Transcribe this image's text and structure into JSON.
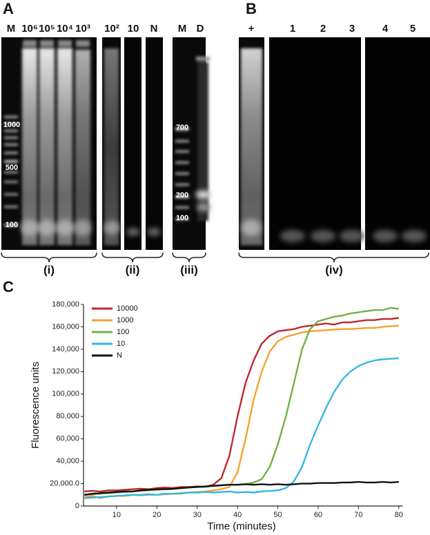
{
  "panel_a": {
    "label": "A",
    "lanes_i": [
      "M",
      "10⁶",
      "10⁵",
      "10⁴",
      "10³"
    ],
    "lanes_ii": [
      "10²",
      "10",
      "N"
    ],
    "lanes_iii": [
      "M",
      "D"
    ],
    "ladder_i": [
      "1000",
      "500",
      "100"
    ],
    "ladder_iii": [
      "700",
      "200",
      "100"
    ]
  },
  "groups": [
    "(i)",
    "(ii)",
    "(iii)",
    "(iv)"
  ],
  "panel_b": {
    "label": "B",
    "lanes": [
      "+",
      "1",
      "2",
      "3",
      "4",
      "5"
    ]
  },
  "panel_c": {
    "label": "C"
  },
  "chart_data": {
    "type": "line",
    "xlabel": "Time (minutes)",
    "ylabel": "Fluorescence units",
    "x": [
      2,
      4,
      6,
      8,
      10,
      12,
      14,
      16,
      18,
      20,
      22,
      24,
      26,
      28,
      30,
      32,
      34,
      36,
      38,
      40,
      42,
      44,
      46,
      48,
      50,
      52,
      54,
      56,
      58,
      60,
      62,
      64,
      66,
      68,
      70,
      72,
      74,
      76,
      78,
      80
    ],
    "series": [
      {
        "name": "10000",
        "color": "#c0272d",
        "values": [
          13000,
          13500,
          13000,
          14000,
          14000,
          14500,
          15000,
          15500,
          15000,
          16000,
          16500,
          16000,
          17000,
          17000,
          17500,
          17000,
          19000,
          25000,
          45000,
          80000,
          110000,
          130000,
          145000,
          152000,
          156000,
          157000,
          158000,
          160000,
          161000,
          162000,
          163000,
          162000,
          164000,
          164000,
          165000,
          166000,
          166000,
          167000,
          167000,
          168000
        ]
      },
      {
        "name": "1000",
        "color": "#f7a12c",
        "values": [
          8000,
          9000,
          7000,
          8500,
          9000,
          9000,
          10000,
          9500,
          10000,
          10000,
          10500,
          11000,
          11000,
          12000,
          12500,
          13000,
          14000,
          15000,
          17000,
          30000,
          60000,
          95000,
          120000,
          138000,
          147000,
          151000,
          153000,
          155000,
          156000,
          156500,
          157000,
          157500,
          158000,
          158000,
          158500,
          159000,
          159000,
          160000,
          160500,
          161000
        ]
      },
      {
        "name": "100",
        "color": "#72b043",
        "values": [
          10000,
          10500,
          11000,
          11500,
          12000,
          12500,
          13000,
          13500,
          14000,
          14500,
          15000,
          15000,
          16000,
          16500,
          17000,
          17000,
          18000,
          18500,
          19000,
          19000,
          19500,
          21000,
          24000,
          35000,
          55000,
          80000,
          110000,
          140000,
          158000,
          165000,
          167000,
          169000,
          170000,
          172000,
          173000,
          174000,
          175000,
          175000,
          177000,
          176000
        ]
      },
      {
        "name": "10",
        "color": "#33b5e5",
        "values": [
          7000,
          7500,
          8000,
          8500,
          9000,
          9500,
          10000,
          10000,
          10500,
          10000,
          11000,
          11000,
          11500,
          12000,
          12000,
          12500,
          12000,
          12500,
          13000,
          12000,
          12500,
          12000,
          13000,
          13500,
          14000,
          16000,
          22000,
          35000,
          55000,
          72000,
          88000,
          102000,
          113000,
          120000,
          125000,
          128000,
          130000,
          131000,
          131500,
          132000
        ]
      },
      {
        "name": "N",
        "color": "#111111",
        "values": [
          10000,
          11000,
          11500,
          12000,
          12500,
          13000,
          13000,
          14000,
          14500,
          15000,
          15000,
          15500,
          16000,
          16500,
          17000,
          17500,
          18000,
          18500,
          19000,
          19000,
          19500,
          19000,
          19500,
          19000,
          19500,
          19000,
          19500,
          20000,
          20000,
          20500,
          20500,
          20500,
          21000,
          21000,
          21500,
          21000,
          21000,
          21500,
          21000,
          21500
        ]
      }
    ],
    "xlim": [
      1.8,
      81
    ],
    "ylim": [
      0,
      180000
    ],
    "xticks": [
      10,
      20,
      30,
      40,
      50,
      60,
      70,
      80
    ],
    "yticks": [
      0,
      {
        "value": 20000,
        "label": "20,000.0"
      },
      {
        "value": 40000,
        "label": "40,000"
      },
      {
        "value": 60000,
        "label": "60,000"
      },
      {
        "value": 80000,
        "label": "80,000"
      },
      {
        "value": 100000,
        "label": "100,000"
      },
      {
        "value": 120000,
        "label": "120,000"
      },
      {
        "value": 140000,
        "label": "140,000"
      },
      {
        "value": 160000,
        "label": "160,000"
      },
      {
        "value": 180000,
        "label": "180,000"
      }
    ],
    "legend": "upper left"
  }
}
